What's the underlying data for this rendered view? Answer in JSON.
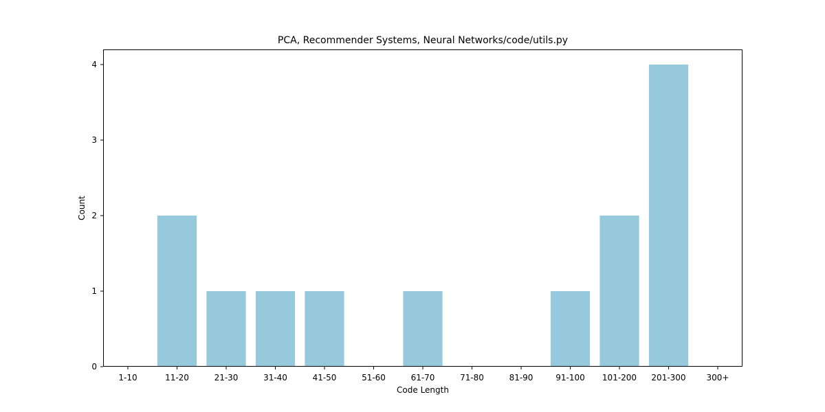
{
  "chart_data": {
    "type": "bar",
    "title": "PCA, Recommender Systems, Neural Networks/code/utils.py",
    "xlabel": "Code Length",
    "ylabel": "Count",
    "categories": [
      "1-10",
      "11-20",
      "21-30",
      "31-40",
      "41-50",
      "51-60",
      "61-70",
      "71-80",
      "81-90",
      "91-100",
      "101-200",
      "201-300",
      "300+"
    ],
    "values": [
      0,
      2,
      1,
      1,
      1,
      0,
      1,
      0,
      0,
      1,
      2,
      4,
      0
    ],
    "yticks": [
      0,
      1,
      2,
      3,
      4
    ],
    "ylim": [
      0,
      4.2
    ],
    "bar_color": "#96c9dc",
    "grid": false,
    "legend": "none"
  }
}
